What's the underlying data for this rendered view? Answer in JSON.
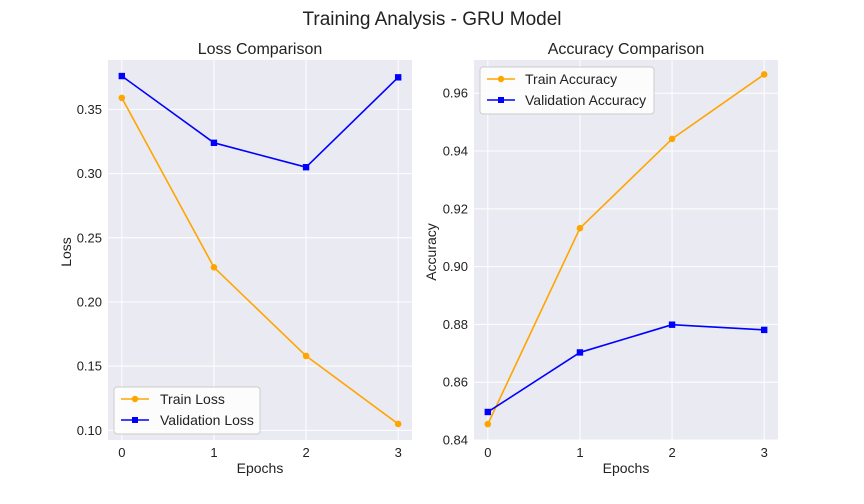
{
  "figure": {
    "title": "Training Analysis - GRU Model"
  },
  "colors": {
    "train": "#FFA500",
    "validation": "#0000FF",
    "panel_bg": "#EAEAF2",
    "grid": "#FFFFFF"
  },
  "chart_data": [
    {
      "type": "line",
      "title": "Loss Comparison",
      "xlabel": "Epochs",
      "ylabel": "Loss",
      "x": [
        0,
        1,
        2,
        3
      ],
      "xticks": [
        "0",
        "1",
        "2",
        "3"
      ],
      "xlim": [
        -0.15,
        3.15
      ],
      "ylim": [
        0.0925,
        0.3885
      ],
      "yticks": [
        "0.10",
        "0.15",
        "0.20",
        "0.25",
        "0.30",
        "0.35"
      ],
      "ytick_values": [
        0.1,
        0.15,
        0.2,
        0.25,
        0.3,
        0.35
      ],
      "grid": true,
      "legend_position": "lower-left",
      "series": [
        {
          "name": "Train Loss",
          "marker": "circle",
          "color": "#FFA500",
          "values": [
            0.359,
            0.227,
            0.158,
            0.105
          ]
        },
        {
          "name": "Validation Loss",
          "marker": "square",
          "color": "#0000FF",
          "values": [
            0.376,
            0.324,
            0.305,
            0.375
          ]
        }
      ]
    },
    {
      "type": "line",
      "title": "Accuracy Comparison",
      "xlabel": "Epochs",
      "ylabel": "Accuracy",
      "x": [
        0,
        1,
        2,
        3
      ],
      "xticks": [
        "0",
        "1",
        "2",
        "3"
      ],
      "xlim": [
        -0.15,
        3.15
      ],
      "ylim": [
        0.84,
        0.9715
      ],
      "yticks": [
        "0.84",
        "0.86",
        "0.88",
        "0.90",
        "0.92",
        "0.94",
        "0.96"
      ],
      "ytick_values": [
        0.84,
        0.86,
        0.88,
        0.9,
        0.92,
        0.94,
        0.96
      ],
      "grid": true,
      "legend_position": "upper-left",
      "series": [
        {
          "name": "Train Accuracy",
          "marker": "circle",
          "color": "#FFA500",
          "values": [
            0.8455,
            0.9133,
            0.9442,
            0.9665
          ]
        },
        {
          "name": "Validation Accuracy",
          "marker": "square",
          "color": "#0000FF",
          "values": [
            0.8497,
            0.8703,
            0.8799,
            0.8781
          ]
        }
      ]
    }
  ]
}
